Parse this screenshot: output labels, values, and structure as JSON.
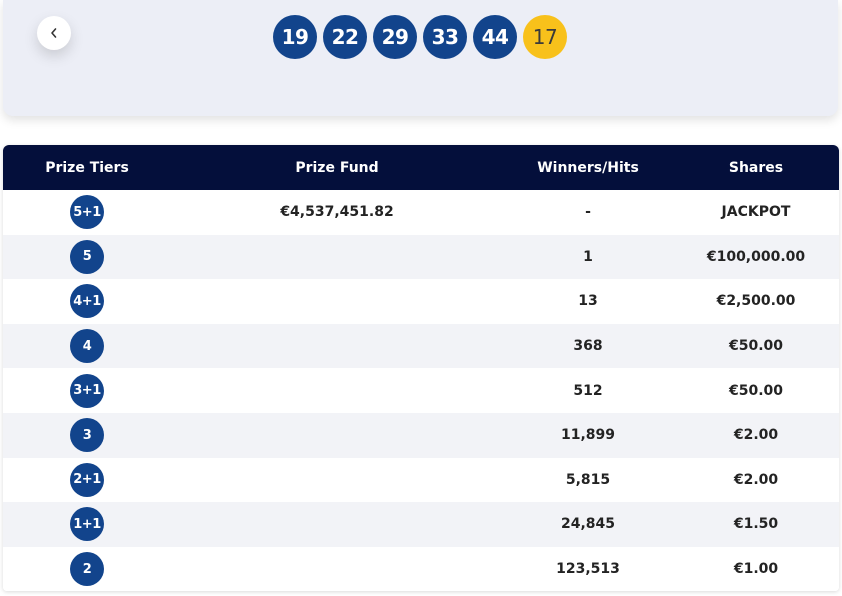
{
  "draw": {
    "main_numbers": [
      "19",
      "22",
      "29",
      "33",
      "44"
    ],
    "bonus_number": "17"
  },
  "table": {
    "headers": {
      "tier": "Prize Tiers",
      "fund": "Prize Fund",
      "winners": "Winners/Hits",
      "shares": "Shares"
    },
    "rows": [
      {
        "tier": "5+1",
        "fund": "€4,537,451.82",
        "winners": "-",
        "shares": "JACKPOT"
      },
      {
        "tier": "5",
        "fund": "",
        "winners": "1",
        "shares": "€100,000.00"
      },
      {
        "tier": "4+1",
        "fund": "",
        "winners": "13",
        "shares": "€2,500.00"
      },
      {
        "tier": "4",
        "fund": "",
        "winners": "368",
        "shares": "€50.00"
      },
      {
        "tier": "3+1",
        "fund": "",
        "winners": "512",
        "shares": "€50.00"
      },
      {
        "tier": "3",
        "fund": "",
        "winners": "11,899",
        "shares": "€2.00"
      },
      {
        "tier": "2+1",
        "fund": "",
        "winners": "5,815",
        "shares": "€2.00"
      },
      {
        "tier": "1+1",
        "fund": "",
        "winners": "24,845",
        "shares": "€1.50"
      },
      {
        "tier": "2",
        "fund": "",
        "winners": "123,513",
        "shares": "€1.00"
      }
    ]
  },
  "icons": {
    "back": "chevron-left-icon"
  },
  "colors": {
    "ball_blue": "#12448c",
    "bonus_yellow": "#f8c11b",
    "header_navy": "#040f3b",
    "card_bg": "#eceef6"
  }
}
